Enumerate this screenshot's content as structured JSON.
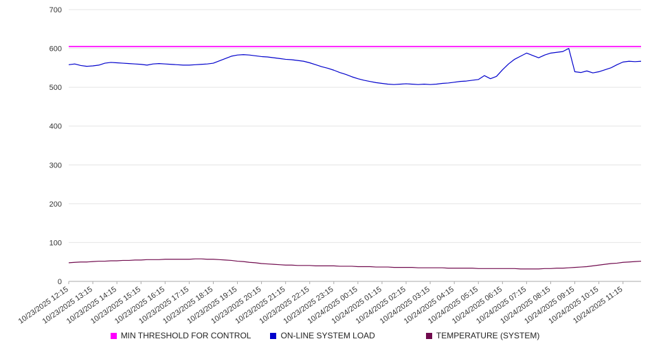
{
  "chart_data": {
    "type": "line",
    "title": "",
    "xlabel": "",
    "ylabel": "",
    "ylim": [
      0,
      700
    ],
    "yticks": [
      0,
      100,
      200,
      300,
      400,
      500,
      600,
      700
    ],
    "grid": true,
    "legend_position": "bottom",
    "points_per_label": 4,
    "x_labels": [
      "10/23/2025 12:15",
      "10/23/2025 13:15",
      "10/23/2025 14:15",
      "10/23/2025 15:15",
      "10/23/2025 16:15",
      "10/23/2025 17:15",
      "10/23/2025 18:15",
      "10/23/2025 19:15",
      "10/23/2025 20:15",
      "10/23/2025 21:15",
      "10/23/2025 22:15",
      "10/23/2025 23:15",
      "10/24/2025 00:15",
      "10/24/2025 01:15",
      "10/24/2025 02:15",
      "10/24/2025 03:15",
      "10/24/2025 04:15",
      "10/24/2025 05:15",
      "10/24/2025 06:15",
      "10/24/2025 07:15",
      "10/24/2025 08:15",
      "10/24/2025 09:15",
      "10/24/2025 10:15",
      "10/24/2025 11:15"
    ],
    "series": [
      {
        "name": "MIN THRESHOLD FOR CONTROL",
        "color": "#ff00ff",
        "constant": 605
      },
      {
        "name": "ON-LINE SYSTEM LOAD",
        "color": "#0000cc",
        "values": [
          558,
          560,
          556,
          554,
          555,
          557,
          562,
          564,
          563,
          562,
          561,
          560,
          559,
          557,
          560,
          561,
          560,
          559,
          558,
          557,
          557,
          558,
          559,
          560,
          562,
          568,
          574,
          580,
          583,
          584,
          583,
          581,
          579,
          578,
          576,
          574,
          572,
          571,
          569,
          567,
          563,
          558,
          553,
          549,
          544,
          538,
          533,
          527,
          522,
          518,
          515,
          512,
          510,
          508,
          507,
          508,
          509,
          508,
          507,
          508,
          507,
          508,
          510,
          511,
          513,
          515,
          516,
          518,
          520,
          530,
          522,
          528,
          545,
          560,
          572,
          580,
          588,
          582,
          576,
          583,
          588,
          590,
          592,
          600,
          540,
          538,
          542,
          537,
          540,
          545,
          550,
          558,
          565,
          567,
          566,
          567
        ]
      },
      {
        "name": "TEMPERATURE (SYSTEM)",
        "color": "#700a4d",
        "values": [
          48,
          49,
          50,
          50,
          51,
          52,
          52,
          53,
          53,
          54,
          54,
          55,
          55,
          56,
          56,
          56,
          57,
          57,
          57,
          57,
          57,
          58,
          58,
          57,
          57,
          56,
          55,
          54,
          52,
          51,
          49,
          48,
          46,
          45,
          44,
          43,
          42,
          42,
          41,
          41,
          41,
          40,
          40,
          40,
          40,
          39,
          39,
          39,
          38,
          38,
          38,
          37,
          37,
          37,
          36,
          36,
          36,
          36,
          35,
          35,
          35,
          35,
          35,
          34,
          34,
          34,
          34,
          34,
          33,
          33,
          33,
          33,
          33,
          33,
          33,
          32,
          32,
          32,
          32,
          33,
          33,
          34,
          34,
          35,
          36,
          37,
          38,
          40,
          42,
          44,
          46,
          47,
          49,
          50,
          51,
          52
        ]
      }
    ]
  }
}
